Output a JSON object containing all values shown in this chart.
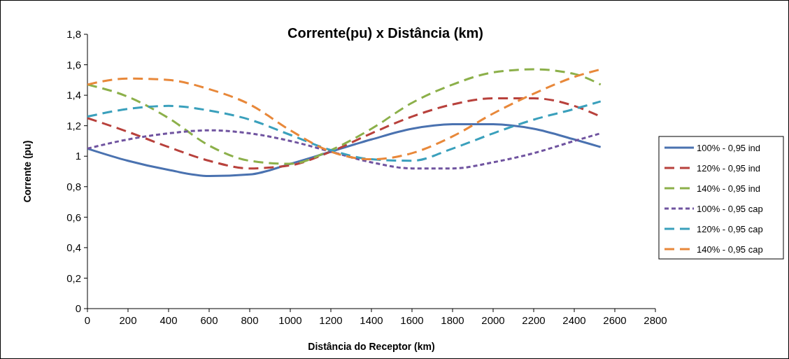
{
  "chart_data": {
    "type": "line",
    "title": "Corrente(pu) x Distância (km)",
    "xlabel": "Distância do Receptor (km)",
    "ylabel": "Corrente (pu)",
    "x": [
      0,
      200,
      400,
      600,
      800,
      1000,
      1200,
      1400,
      1600,
      1800,
      2000,
      2200,
      2400,
      2530
    ],
    "series": [
      {
        "name": "100% - 0,95 ind",
        "color": "#4a72b0",
        "line_style": "solid",
        "values": [
          1.05,
          0.97,
          0.91,
          0.87,
          0.88,
          0.95,
          1.03,
          1.11,
          1.18,
          1.21,
          1.21,
          1.18,
          1.11,
          1.06
        ]
      },
      {
        "name": "120% - 0,95 ind",
        "color": "#b8413c",
        "line_style": "dashed",
        "values": [
          1.25,
          1.16,
          1.06,
          0.97,
          0.92,
          0.94,
          1.03,
          1.15,
          1.26,
          1.34,
          1.38,
          1.38,
          1.33,
          1.26
        ]
      },
      {
        "name": "140% - 0,95 ind",
        "color": "#8cb04a",
        "line_style": "dashed",
        "values": [
          1.47,
          1.39,
          1.25,
          1.07,
          0.97,
          0.95,
          1.04,
          1.18,
          1.35,
          1.47,
          1.55,
          1.57,
          1.54,
          1.47
        ]
      },
      {
        "name": "100% - 0,95 cap",
        "color": "#7054a0",
        "line_style": "dotted",
        "values": [
          1.05,
          1.11,
          1.15,
          1.17,
          1.15,
          1.1,
          1.03,
          0.96,
          0.92,
          0.92,
          0.96,
          1.02,
          1.1,
          1.15
        ]
      },
      {
        "name": "120% - 0,95 cap",
        "color": "#3aa0bc",
        "line_style": "dashed",
        "values": [
          1.26,
          1.31,
          1.33,
          1.3,
          1.24,
          1.14,
          1.04,
          0.98,
          0.97,
          1.05,
          1.15,
          1.24,
          1.31,
          1.36
        ]
      },
      {
        "name": "140% - 0,95 cap",
        "color": "#e8883a",
        "line_style": "dashed",
        "values": [
          1.47,
          1.51,
          1.5,
          1.44,
          1.34,
          1.17,
          1.03,
          0.98,
          1.02,
          1.13,
          1.28,
          1.41,
          1.52,
          1.57
        ]
      }
    ],
    "xlim": [
      0,
      2800
    ],
    "xticks": [
      0,
      200,
      400,
      600,
      800,
      1000,
      1200,
      1400,
      1600,
      1800,
      2000,
      2200,
      2400,
      2600,
      2800
    ],
    "ylim": [
      0,
      1.8
    ],
    "yticks": [
      {
        "value": 0,
        "label": "0"
      },
      {
        "value": 0.2,
        "label": "0,2"
      },
      {
        "value": 0.4,
        "label": "0,4"
      },
      {
        "value": 0.6,
        "label": "0,6"
      },
      {
        "value": 0.8,
        "label": "0,8"
      },
      {
        "value": 1,
        "label": "1"
      },
      {
        "value": 1.2,
        "label": "1,2"
      },
      {
        "value": 1.4,
        "label": "1,4"
      },
      {
        "value": 1.6,
        "label": "1,6"
      },
      {
        "value": 1.8,
        "label": "1,8"
      }
    ],
    "grid": false,
    "legend": "right",
    "marker": "none"
  }
}
